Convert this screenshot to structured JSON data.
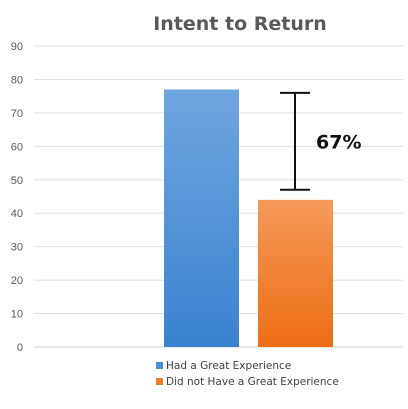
{
  "chart_data": {
    "type": "bar",
    "title": "Intent to Return",
    "xlabel": "",
    "ylabel": "",
    "ylim": [
      0,
      90
    ],
    "yticks": [
      0,
      10,
      20,
      30,
      40,
      50,
      60,
      70,
      80,
      90
    ],
    "grid": true,
    "legend_position": "bottom",
    "series": [
      {
        "name": "Had a Great Experience",
        "value": 77,
        "color": "#4a8fd6"
      },
      {
        "name": "Did not Have a Great Experience",
        "value": 44,
        "color": "#f07b28"
      }
    ],
    "annotation": {
      "text": "67%",
      "range": [
        47,
        76
      ]
    }
  }
}
